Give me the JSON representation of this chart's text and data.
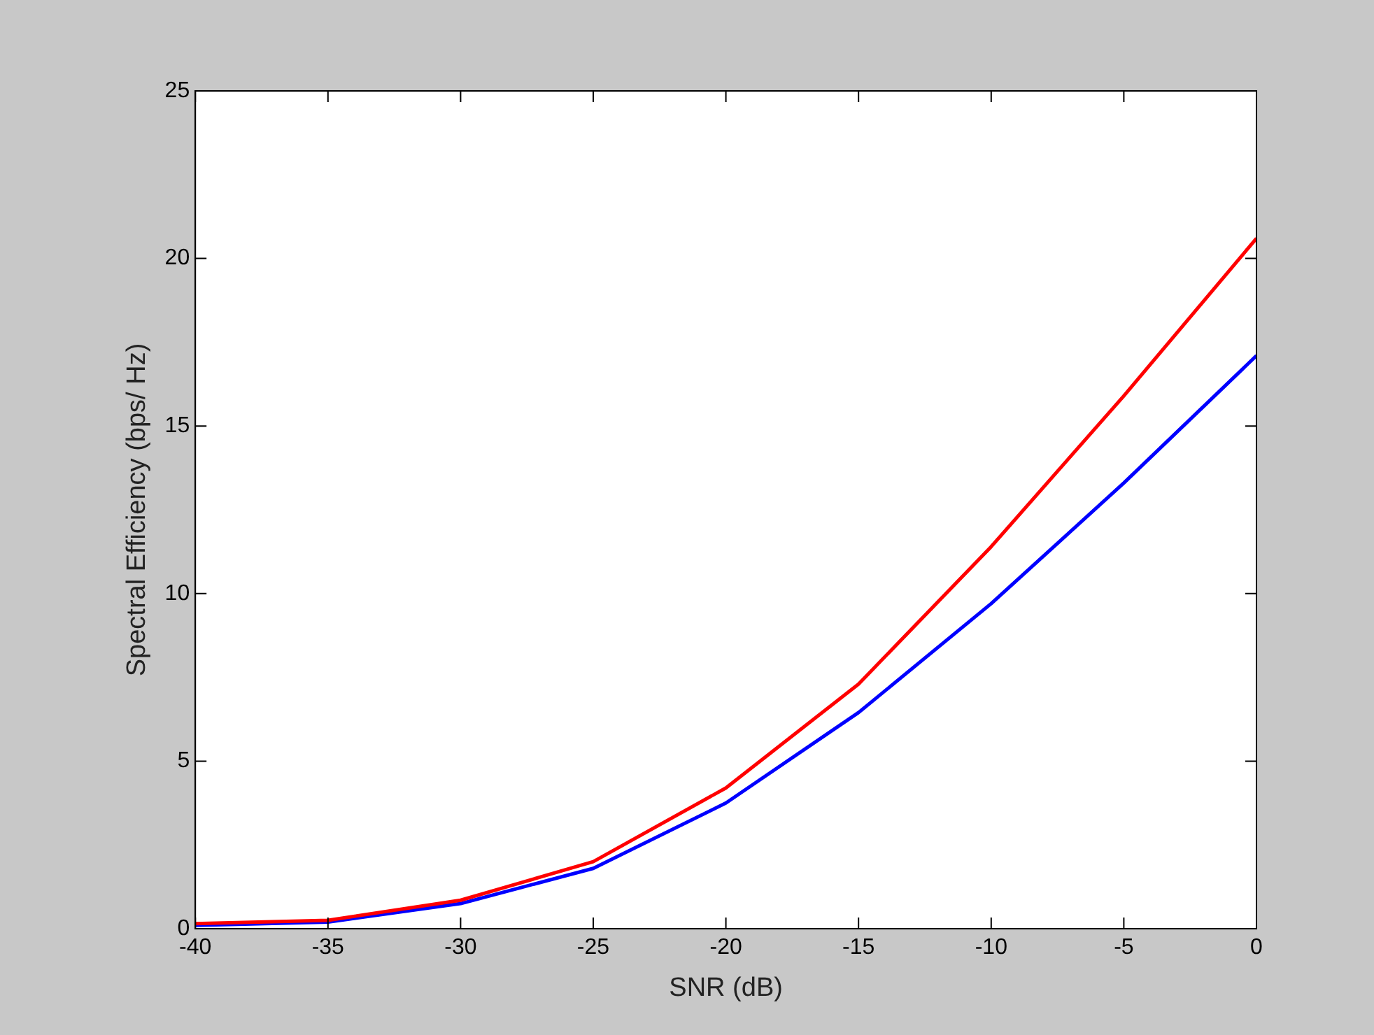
{
  "chart_data": {
    "type": "line",
    "xlabel": "SNR (dB)",
    "ylabel": "Spectral Efficiency (bps/ Hz)",
    "x": [
      -40,
      -35,
      -30,
      -25,
      -20,
      -15,
      -10,
      -5,
      0
    ],
    "series": [
      {
        "color": "#ff0000",
        "values": [
          0.15,
          0.25,
          0.85,
          2.0,
          4.2,
          7.3,
          11.4,
          15.9,
          20.6
        ]
      },
      {
        "color": "#0000ff",
        "values": [
          0.1,
          0.2,
          0.75,
          1.8,
          3.75,
          6.45,
          9.7,
          13.3,
          17.1
        ]
      }
    ],
    "xlim": [
      -40,
      0
    ],
    "xticks": [
      -40,
      -35,
      -30,
      -25,
      -20,
      -15,
      -10,
      -5,
      0
    ],
    "ylim": [
      0,
      25
    ],
    "yticks": [
      0,
      5,
      10,
      15,
      20,
      25
    ],
    "grid": false,
    "legend": false,
    "marker": "none",
    "line_style": "solid"
  }
}
